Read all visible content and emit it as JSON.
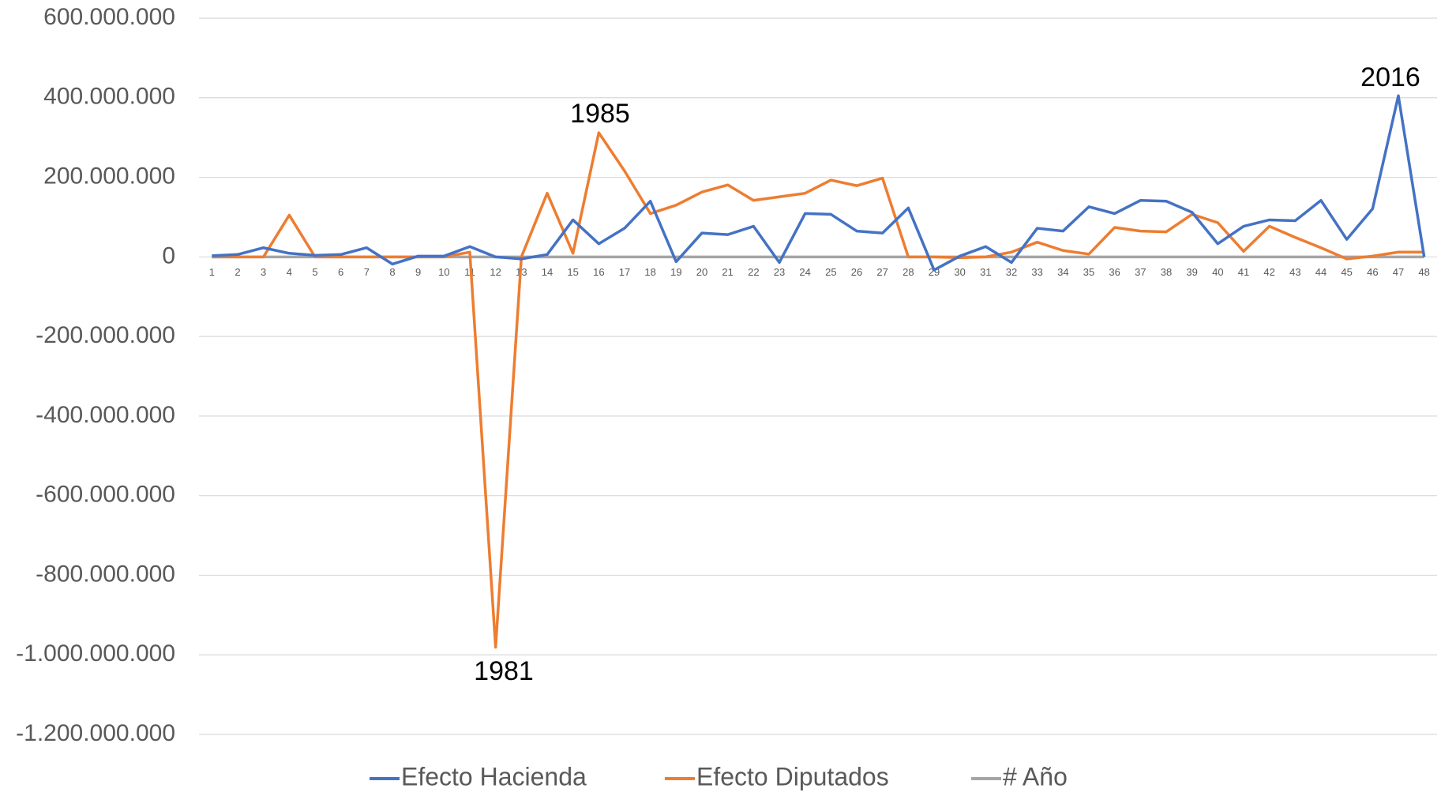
{
  "chart_data": {
    "type": "line",
    "categories": [
      "1",
      "2",
      "3",
      "4",
      "5",
      "6",
      "7",
      "8",
      "9",
      "10",
      "11",
      "12",
      "13",
      "14",
      "15",
      "16",
      "17",
      "18",
      "19",
      "20",
      "21",
      "22",
      "23",
      "24",
      "25",
      "26",
      "27",
      "28",
      "29",
      "30",
      "31",
      "32",
      "33",
      "34",
      "35",
      "36",
      "37",
      "38",
      "39",
      "40",
      "41",
      "42",
      "43",
      "44",
      "45",
      "46",
      "47",
      "48"
    ],
    "series": [
      {
        "name": "Efecto Hacienda",
        "color": "#4472c4",
        "values": [
          3000000,
          6000000,
          23000000,
          9000000,
          4000000,
          6000000,
          23000000,
          -18000000,
          2000000,
          2000000,
          26000000,
          0,
          -5000000,
          6000000,
          93000000,
          33000000,
          72000000,
          140000000,
          -12000000,
          60000000,
          56000000,
          77000000,
          -14000000,
          109000000,
          107000000,
          65000000,
          60000000,
          123000000,
          -33000000,
          2000000,
          26000000,
          -14000000,
          72000000,
          65000000,
          126000000,
          109000000,
          142000000,
          140000000,
          112000000,
          33000000,
          77000000,
          93000000,
          91000000,
          142000000,
          44000000,
          121000000,
          405000000,
          0
        ]
      },
      {
        "name": "Efecto Diputados",
        "color": "#ed7d31",
        "values": [
          0,
          0,
          0,
          105000000,
          0,
          0,
          0,
          0,
          0,
          0,
          12000000,
          -981000000,
          0,
          160000000,
          9000000,
          312000000,
          216000000,
          109000000,
          130000000,
          163000000,
          181000000,
          142000000,
          151000000,
          160000000,
          193000000,
          179000000,
          198000000,
          0,
          0,
          -2000000,
          0,
          12000000,
          37000000,
          16000000,
          7000000,
          74000000,
          65000000,
          63000000,
          107000000,
          86000000,
          14000000,
          77000000,
          49000000,
          23000000,
          -5000000,
          2000000,
          12000000,
          12000000
        ]
      },
      {
        "name": "# Año",
        "color": "#a5a5a5",
        "values": [
          1970,
          1971,
          1972,
          1973,
          1974,
          1975,
          1976,
          1977,
          1978,
          1979,
          1980,
          1981,
          1982,
          1983,
          1984,
          1985,
          1986,
          1987,
          1988,
          1989,
          1990,
          1991,
          1992,
          1993,
          1994,
          1995,
          1996,
          1997,
          1998,
          1999,
          2000,
          2001,
          2002,
          2003,
          2004,
          2005,
          2006,
          2007,
          2008,
          2009,
          2010,
          2011,
          2012,
          2013,
          2014,
          2015,
          2016,
          2017
        ]
      }
    ],
    "ylim": [
      -1200000000,
      600000000
    ],
    "yticks": [
      {
        "value": -1200000000,
        "label": "-1.200.000.000"
      },
      {
        "value": -1000000000,
        "label": "-1.000.000.000"
      },
      {
        "value": -800000000,
        "label": "-800.000.000"
      },
      {
        "value": -600000000,
        "label": "-600.000.000"
      },
      {
        "value": -400000000,
        "label": "-400.000.000"
      },
      {
        "value": -200000000,
        "label": "-200.000.000"
      },
      0,
      {
        "value": 200000000,
        "label": "200.000.000"
      },
      {
        "value": 400000000,
        "label": "400.000.000"
      },
      {
        "value": 600000000,
        "label": "600.000.000"
      }
    ],
    "grid": true,
    "legend": "bottom",
    "annotations": [
      "1981",
      "1985",
      "2016"
    ]
  }
}
